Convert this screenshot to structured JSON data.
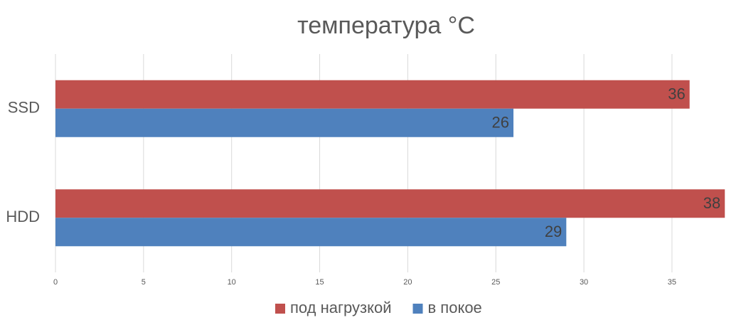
{
  "chart_data": {
    "type": "bar",
    "orientation": "horizontal",
    "title": "температура °C",
    "categories": [
      "SSD",
      "HDD"
    ],
    "series": [
      {
        "name": "под нагрузкой",
        "color": "#c0504d",
        "values": [
          36,
          38
        ]
      },
      {
        "name": "в покое",
        "color": "#4f81bd",
        "values": [
          26,
          29
        ]
      }
    ],
    "xlim": [
      0,
      39
    ],
    "xticks": [
      0,
      5,
      10,
      15,
      20,
      25,
      30,
      35
    ],
    "grid": true,
    "legend": "bottom"
  }
}
